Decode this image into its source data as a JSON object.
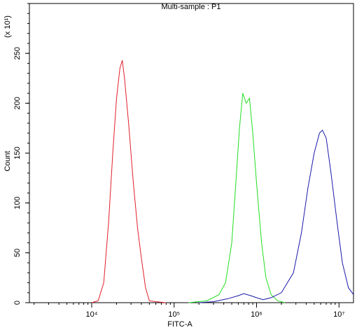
{
  "chart_data": {
    "type": "line",
    "title": "Multi-sample : P1",
    "x_label": "FITC-A",
    "y_label": "Count",
    "y_multiplier": "(x 10¹)",
    "xscale": "log",
    "xlim": [
      1754,
      15000000
    ],
    "xticks": [
      {
        "value": 10000,
        "label": "10⁴"
      },
      {
        "value": 100000,
        "label": "10⁵"
      },
      {
        "value": 1000000,
        "label": "10⁶"
      },
      {
        "value": 10000000,
        "label": "10⁷"
      }
    ],
    "ylim": [
      0,
      300
    ],
    "yticks": [
      0,
      50,
      100,
      150,
      200,
      250
    ],
    "series": [
      {
        "color": "#e0202a",
        "x": [
          10000,
          12000,
          14000,
          16000,
          18000,
          20000,
          22000,
          23500,
          25000,
          28000,
          32000,
          36000,
          40000,
          45000,
          50000,
          60000,
          80000
        ],
        "values": [
          0,
          2,
          20,
          80,
          150,
          205,
          235,
          243,
          225,
          180,
          120,
          75,
          45,
          15,
          2,
          1,
          0
        ]
      },
      {
        "color": "#22dd22",
        "x": [
          150000,
          250000,
          350000,
          420000,
          500000,
          560000,
          620000,
          680000,
          750000,
          820000,
          900000,
          1000000,
          1150000,
          1300000,
          1500000,
          1800000,
          2200000
        ],
        "values": [
          0,
          2,
          8,
          20,
          60,
          120,
          175,
          210,
          200,
          205,
          170,
          120,
          60,
          25,
          8,
          2,
          0
        ]
      },
      {
        "color": "#1a1aaa",
        "x": [
          200000,
          300000,
          450000,
          600000,
          700000,
          850000,
          1000000,
          1200000,
          1500000,
          2000000,
          2800000,
          3500000,
          4200000,
          5000000,
          5800000,
          6300000,
          7000000,
          8000000,
          9500000,
          11000000,
          13000000,
          15000000
        ],
        "values": [
          0,
          1,
          4,
          7,
          9,
          7,
          5,
          3,
          5,
          10,
          30,
          70,
          115,
          150,
          170,
          173,
          165,
          130,
          80,
          40,
          15,
          8
        ]
      }
    ]
  }
}
